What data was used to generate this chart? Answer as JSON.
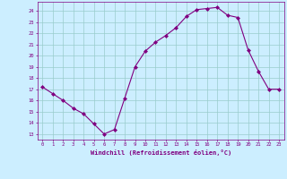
{
  "x": [
    0,
    1,
    2,
    3,
    4,
    5,
    6,
    7,
    8,
    9,
    10,
    11,
    12,
    13,
    14,
    15,
    16,
    17,
    18,
    19,
    20,
    21,
    22,
    23
  ],
  "y": [
    17.2,
    16.6,
    16.0,
    15.3,
    14.8,
    13.9,
    13.0,
    13.4,
    16.2,
    19.0,
    20.4,
    21.2,
    21.8,
    22.5,
    23.5,
    24.1,
    24.2,
    24.3,
    23.6,
    23.4,
    20.5,
    18.6,
    17.0,
    17.0
  ],
  "line_color": "#800080",
  "marker": "D",
  "marker_size": 2.0,
  "bg_color": "#cceeff",
  "grid_color": "#99cccc",
  "xlabel": "Windchill (Refroidissement éolien,°C)",
  "xlabel_color": "#800080",
  "tick_color": "#800080",
  "spine_color": "#800080",
  "ylim": [
    12.5,
    24.8
  ],
  "xlim": [
    -0.5,
    23.5
  ],
  "yticks": [
    13,
    14,
    15,
    16,
    17,
    18,
    19,
    20,
    21,
    22,
    23,
    24
  ],
  "xticks": [
    0,
    1,
    2,
    3,
    4,
    5,
    6,
    7,
    8,
    9,
    10,
    11,
    12,
    13,
    14,
    15,
    16,
    17,
    18,
    19,
    20,
    21,
    22,
    23
  ]
}
